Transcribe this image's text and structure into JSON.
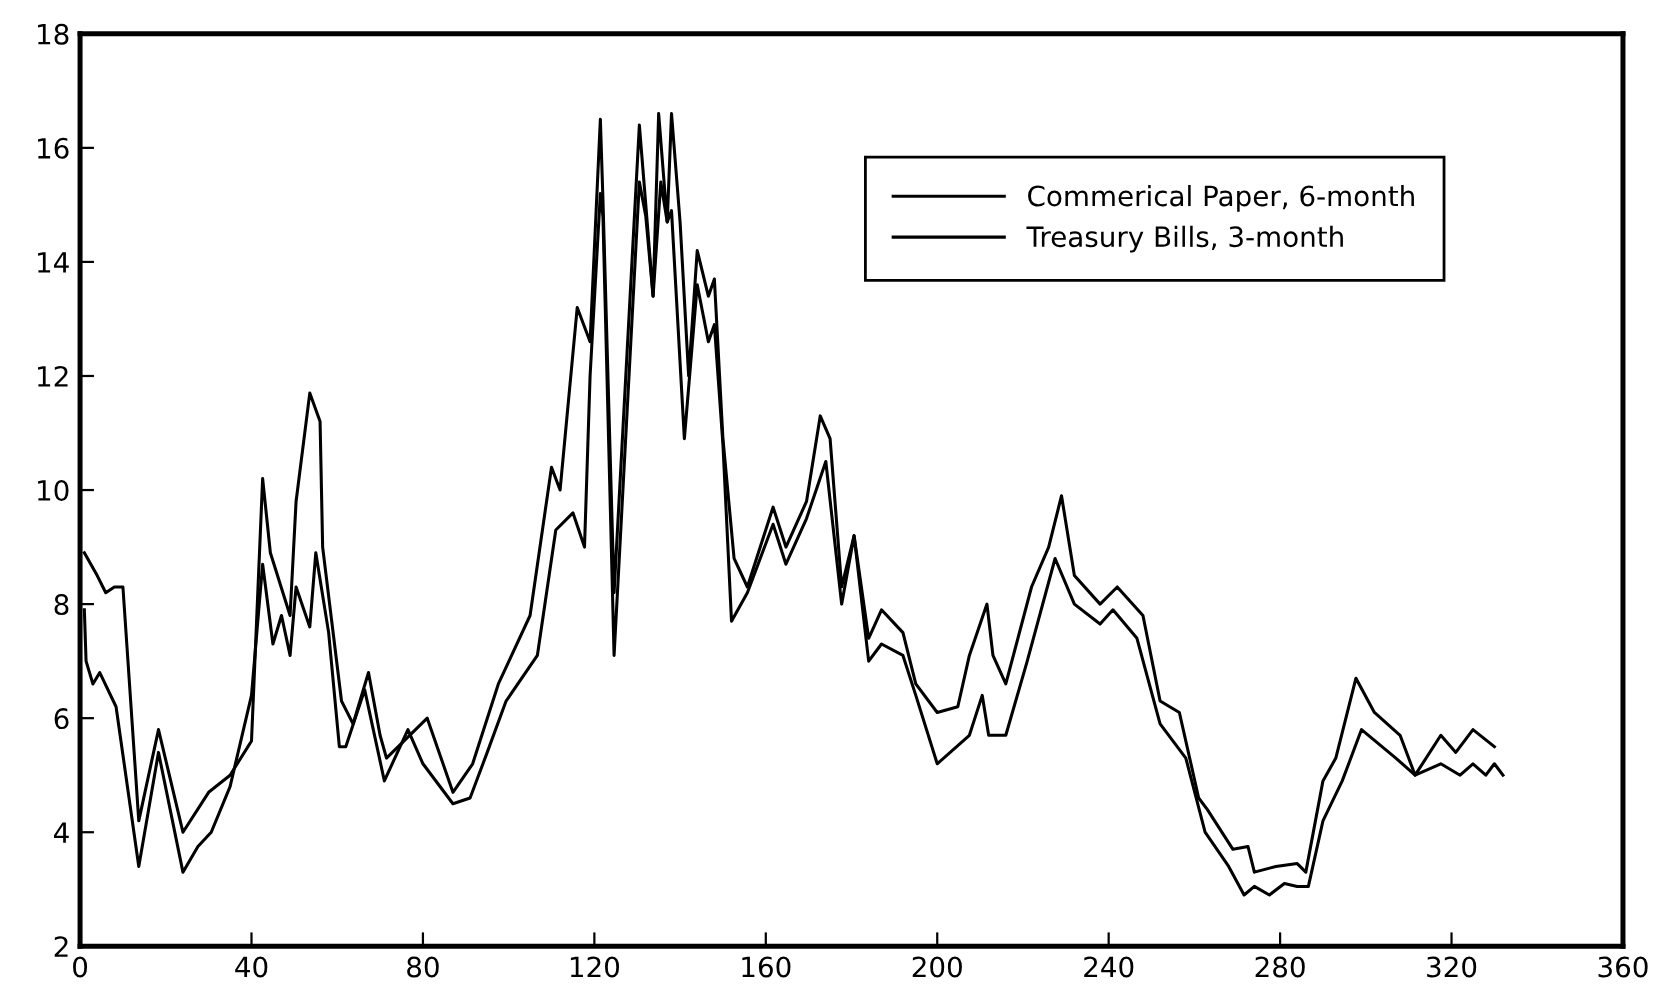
{
  "chart_data": {
    "type": "line",
    "xlim": [
      0,
      360
    ],
    "ylim": [
      2,
      18
    ],
    "xticks": [
      0,
      40,
      80,
      120,
      160,
      200,
      240,
      280,
      320,
      360
    ],
    "yticks": [
      2,
      4,
      6,
      8,
      10,
      12,
      14,
      16,
      18
    ],
    "grid": false,
    "legend": "top right",
    "marker": "none",
    "line_style": "solid",
    "series": [
      {
        "name": "Commerical Paper, 6-month",
        "color": "#000000",
        "x": [
          1,
          4,
          6,
          8,
          10,
          13.7,
          18.3,
          24,
          30,
          35,
          40,
          42.6,
          44.4,
          49,
          50.4,
          53.6,
          56,
          56.6,
          61,
          63.7,
          67.3,
          70,
          71.5,
          81,
          87,
          91.6,
          97.6,
          105,
          110,
          112,
          116,
          119,
          121.4,
          122,
          124.6,
          130.5,
          132,
          133.7,
          135,
          137,
          138,
          140,
          142,
          144,
          146.6,
          148,
          150,
          152.6,
          155.7,
          161.7,
          164.7,
          169.5,
          172.7,
          175,
          177.7,
          180.6,
          184,
          187,
          192,
          195,
          200,
          204.8,
          207.5,
          211.6,
          213,
          216,
          222,
          226,
          229,
          232,
          238,
          242,
          248,
          252,
          256.5,
          261,
          263,
          269,
          272.5,
          274,
          279,
          284,
          286,
          290,
          293,
          297.7,
          302,
          308,
          311.5,
          317.5,
          321,
          325,
          330
        ],
        "values": [
          8.9,
          8.5,
          8.2,
          8.3,
          8.3,
          4.2,
          5.8,
          4.0,
          4.7,
          5.0,
          5.6,
          10.2,
          8.9,
          7.8,
          9.8,
          11.7,
          11.2,
          9.0,
          6.3,
          5.9,
          6.8,
          5.7,
          5.3,
          6.0,
          4.7,
          5.2,
          6.6,
          7.8,
          10.4,
          10.0,
          13.2,
          12.6,
          16.5,
          15.1,
          8.2,
          16.4,
          15.0,
          13.4,
          16.6,
          14.7,
          16.6,
          14.7,
          12.0,
          14.2,
          13.4,
          13.7,
          10.9,
          8.8,
          8.3,
          9.7,
          9.0,
          9.8,
          11.3,
          10.9,
          8.3,
          9.2,
          7.4,
          7.9,
          7.5,
          6.6,
          6.1,
          6.2,
          7.1,
          8.0,
          7.1,
          6.6,
          8.3,
          9.0,
          9.9,
          8.5,
          8.0,
          8.3,
          7.8,
          6.3,
          6.1,
          4.6,
          4.4,
          3.7,
          3.75,
          3.3,
          3.4,
          3.45,
          3.3,
          4.9,
          5.3,
          6.7,
          6.1,
          5.7,
          5.0,
          5.7,
          5.4,
          5.8,
          5.5
        ]
      },
      {
        "name": "Treasury Bills, 3-month",
        "color": "#000000",
        "x": [
          1,
          1.4,
          3,
          4.6,
          8.4,
          13.7,
          18.3,
          24,
          27.5,
          30.6,
          35,
          40,
          42.6,
          45,
          47,
          49,
          50.4,
          53.6,
          55,
          58,
          60.5,
          62,
          66.4,
          71,
          76.5,
          80,
          87,
          91,
          95,
          99.4,
          106.7,
          111,
          115,
          117.7,
          119,
          121.4,
          122,
          124.6,
          130.5,
          132,
          133.7,
          135.5,
          137,
          138,
          141,
          144,
          146.6,
          148,
          150,
          152,
          155.7,
          161.7,
          164.7,
          169.5,
          174,
          177.7,
          180.6,
          184,
          187,
          192,
          195,
          200,
          207.5,
          210.5,
          212,
          216,
          221,
          227.5,
          232,
          238,
          241,
          246.6,
          252,
          258,
          262.5,
          268,
          271.6,
          274,
          277.5,
          281,
          284,
          286.6,
          290,
          294.5,
          299,
          307,
          311.5,
          317.5,
          322,
          325,
          328,
          330,
          332
        ],
        "values": [
          7.9,
          7.0,
          6.6,
          6.8,
          6.2,
          3.4,
          5.4,
          3.3,
          3.75,
          4.0,
          4.8,
          6.4,
          8.7,
          7.3,
          7.8,
          7.1,
          8.3,
          7.6,
          8.9,
          7.5,
          5.5,
          5.5,
          6.5,
          4.9,
          5.8,
          5.2,
          4.5,
          4.6,
          5.4,
          6.3,
          7.1,
          9.3,
          9.6,
          9.0,
          12.0,
          15.2,
          14.8,
          7.1,
          15.4,
          14.8,
          13.4,
          15.4,
          14.7,
          14.9,
          10.9,
          13.6,
          12.6,
          12.9,
          10.8,
          7.7,
          8.2,
          9.4,
          8.7,
          9.5,
          10.5,
          8.0,
          9.2,
          7.0,
          7.3,
          7.1,
          6.4,
          5.2,
          5.7,
          6.4,
          5.7,
          5.7,
          7.0,
          8.8,
          8.0,
          7.65,
          7.9,
          7.4,
          5.9,
          5.3,
          4.0,
          3.4,
          2.9,
          3.05,
          2.9,
          3.1,
          3.05,
          3.05,
          4.2,
          4.9,
          5.8,
          5.3,
          5.0,
          5.2,
          5.0,
          5.2,
          5.0,
          5.2,
          5.0
        ]
      }
    ]
  }
}
